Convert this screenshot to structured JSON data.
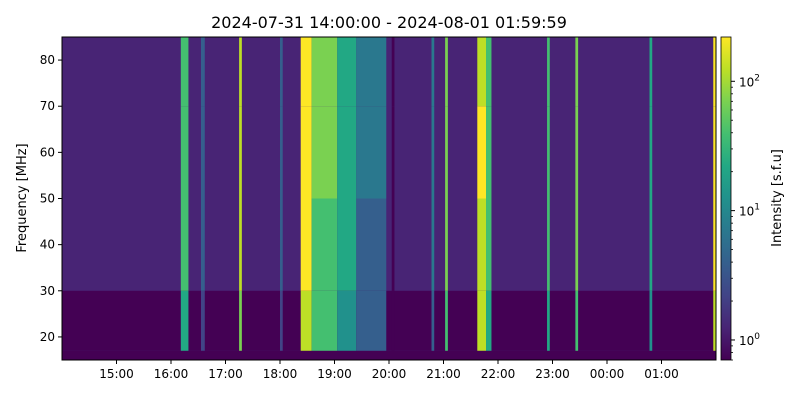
{
  "chart_data": {
    "type": "heatmap",
    "title": "2024-07-31 14:00:00 - 2024-08-01 01:59:59",
    "xlabel": "",
    "ylabel": "Frequency [MHz]",
    "x_range": [
      "2024-07-31 14:00:00",
      "2024-08-01 01:59:59"
    ],
    "ylim": [
      15,
      85
    ],
    "x_ticks": [
      {
        "label": "15:00",
        "hour": 15
      },
      {
        "label": "16:00",
        "hour": 16
      },
      {
        "label": "17:00",
        "hour": 17
      },
      {
        "label": "18:00",
        "hour": 18
      },
      {
        "label": "19:00",
        "hour": 19
      },
      {
        "label": "20:00",
        "hour": 20
      },
      {
        "label": "21:00",
        "hour": 21
      },
      {
        "label": "22:00",
        "hour": 22
      },
      {
        "label": "23:00",
        "hour": 23
      },
      {
        "label": "00:00",
        "hour": 24
      },
      {
        "label": "01:00",
        "hour": 25
      }
    ],
    "y_ticks": [
      20,
      30,
      40,
      50,
      60,
      70,
      80
    ],
    "colorbar": {
      "label": "Intensity [s.f.u]",
      "scale": "log",
      "range": [
        0.7,
        220
      ],
      "major_ticks": [
        1,
        10,
        100
      ],
      "major_labels": [
        "10",
        "10",
        "10"
      ],
      "major_exponents": [
        "0",
        "1",
        "2"
      ],
      "colormap": "viridis"
    },
    "background_intensity": 1.2,
    "bursts": [
      {
        "start_hour": 16.18,
        "end_hour": 16.32,
        "peak": 40
      },
      {
        "start_hour": 16.55,
        "end_hour": 16.62,
        "peak": 5
      },
      {
        "start_hour": 17.25,
        "end_hour": 17.3,
        "peak": 150
      },
      {
        "start_hour": 18.0,
        "end_hour": 18.05,
        "peak": 4
      },
      {
        "start_hour": 18.38,
        "end_hour": 18.58,
        "peak": 200
      },
      {
        "start_hour": 18.58,
        "end_hour": 19.05,
        "peak": 60
      },
      {
        "start_hour": 19.05,
        "end_hour": 19.4,
        "peak": 20
      },
      {
        "start_hour": 19.4,
        "end_hour": 19.95,
        "peak": 6
      },
      {
        "start_hour": 20.05,
        "end_hour": 20.1,
        "peak": 0.8
      },
      {
        "start_hour": 20.78,
        "end_hour": 20.83,
        "peak": 8
      },
      {
        "start_hour": 21.03,
        "end_hour": 21.08,
        "peak": 80
      },
      {
        "start_hour": 21.62,
        "end_hour": 21.78,
        "peak": 180
      },
      {
        "start_hour": 21.78,
        "end_hour": 21.88,
        "peak": 50
      },
      {
        "start_hour": 22.9,
        "end_hour": 22.95,
        "peak": 40
      },
      {
        "start_hour": 23.42,
        "end_hour": 23.47,
        "peak": 70
      },
      {
        "start_hour": 24.78,
        "end_hour": 24.83,
        "peak": 20
      },
      {
        "start_hour": 25.95,
        "end_hour": 26.02,
        "peak": 200
      }
    ]
  }
}
